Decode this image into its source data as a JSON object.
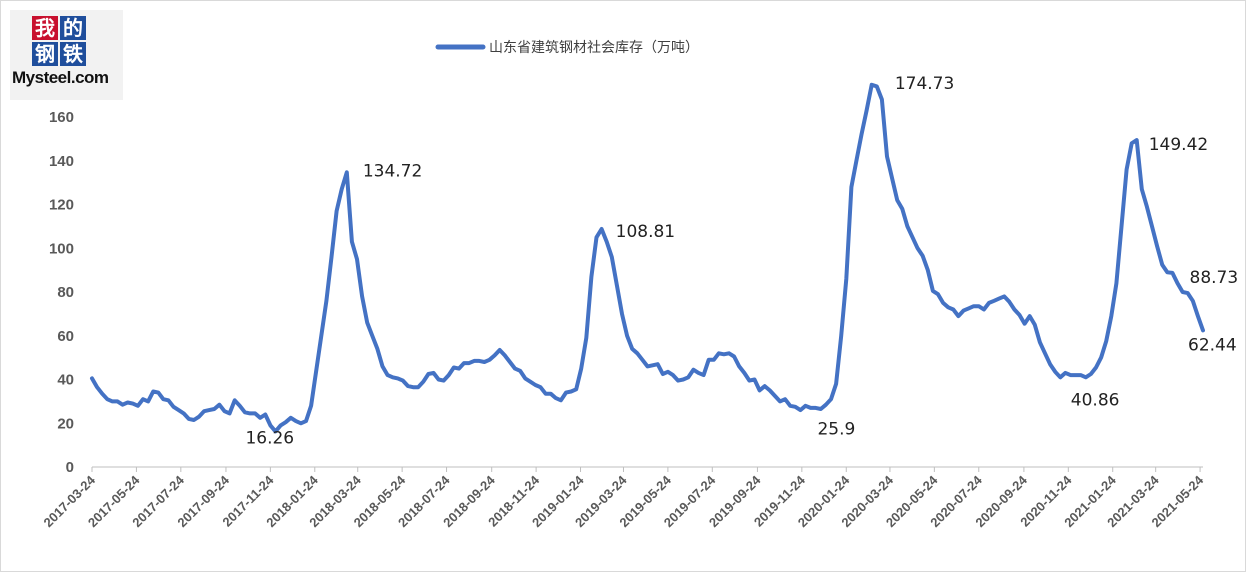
{
  "logo": {
    "chars": [
      "我",
      "的",
      "钢",
      "铁"
    ],
    "wordmark": "Mysteel.com"
  },
  "colors": {
    "series": "#4472c4",
    "axis": "#bfbfbf",
    "tick_text": "#595959"
  },
  "chart_data": {
    "type": "line",
    "title": "",
    "xlabel": "",
    "ylabel": "",
    "ylim": [
      0,
      160
    ],
    "yticks": [
      0,
      20,
      40,
      60,
      80,
      100,
      120,
      140,
      160
    ],
    "grid": false,
    "legend_position": "top-center",
    "x_tick_labels": [
      "2017-03-24",
      "2017-05-24",
      "2017-07-24",
      "2017-09-24",
      "2017-11-24",
      "2018-01-24",
      "2018-03-24",
      "2018-05-24",
      "2018-07-24",
      "2018-09-24",
      "2018-11-24",
      "2019-01-24",
      "2019-03-24",
      "2019-05-24",
      "2019-07-24",
      "2019-09-24",
      "2019-11-24",
      "2020-01-24",
      "2020-03-24",
      "2020-05-24",
      "2020-07-24",
      "2020-09-24",
      "2020-11-24",
      "2021-01-24",
      "2021-03-24",
      "2021-05-24"
    ],
    "series": [
      {
        "name": "山东省建筑钢材社会库存（万吨）",
        "x": [
          "2017-03-24",
          "2017-03-31",
          "2017-04-07",
          "2017-04-14",
          "2017-04-21",
          "2017-04-28",
          "2017-05-05",
          "2017-05-12",
          "2017-05-19",
          "2017-05-26",
          "2017-06-02",
          "2017-06-09",
          "2017-06-16",
          "2017-06-23",
          "2017-06-30",
          "2017-07-07",
          "2017-07-14",
          "2017-07-21",
          "2017-07-28",
          "2017-08-04",
          "2017-08-11",
          "2017-08-18",
          "2017-08-25",
          "2017-09-01",
          "2017-09-08",
          "2017-09-15",
          "2017-09-22",
          "2017-09-29",
          "2017-10-06",
          "2017-10-13",
          "2017-10-20",
          "2017-10-27",
          "2017-11-03",
          "2017-11-10",
          "2017-11-17",
          "2017-11-24",
          "2017-12-01",
          "2017-12-08",
          "2017-12-15",
          "2017-12-22",
          "2017-12-29",
          "2018-01-05",
          "2018-01-12",
          "2018-01-19",
          "2018-01-26",
          "2018-02-02",
          "2018-02-09",
          "2018-02-16",
          "2018-02-23",
          "2018-03-02",
          "2018-03-09",
          "2018-03-16",
          "2018-03-23",
          "2018-03-30",
          "2018-04-06",
          "2018-04-13",
          "2018-04-20",
          "2018-04-27",
          "2018-05-04",
          "2018-05-11",
          "2018-05-18",
          "2018-05-25",
          "2018-06-01",
          "2018-06-08",
          "2018-06-15",
          "2018-06-22",
          "2018-06-29",
          "2018-07-06",
          "2018-07-13",
          "2018-07-20",
          "2018-07-27",
          "2018-08-03",
          "2018-08-10",
          "2018-08-17",
          "2018-08-24",
          "2018-08-31",
          "2018-09-07",
          "2018-09-14",
          "2018-09-21",
          "2018-09-28",
          "2018-10-05",
          "2018-10-12",
          "2018-10-19",
          "2018-10-26",
          "2018-11-02",
          "2018-11-09",
          "2018-11-16",
          "2018-11-23",
          "2018-11-30",
          "2018-12-07",
          "2018-12-14",
          "2018-12-21",
          "2018-12-28",
          "2019-01-04",
          "2019-01-11",
          "2019-01-18",
          "2019-01-25",
          "2019-02-01",
          "2019-02-08",
          "2019-02-15",
          "2019-02-22",
          "2019-03-01",
          "2019-03-08",
          "2019-03-15",
          "2019-03-22",
          "2019-03-29",
          "2019-04-05",
          "2019-04-12",
          "2019-04-19",
          "2019-04-26",
          "2019-05-03",
          "2019-05-10",
          "2019-05-17",
          "2019-05-24",
          "2019-05-31",
          "2019-06-07",
          "2019-06-14",
          "2019-06-21",
          "2019-06-28",
          "2019-07-05",
          "2019-07-12",
          "2019-07-19",
          "2019-07-26",
          "2019-08-02",
          "2019-08-09",
          "2019-08-16",
          "2019-08-23",
          "2019-08-30",
          "2019-09-06",
          "2019-09-13",
          "2019-09-20",
          "2019-09-27",
          "2019-10-04",
          "2019-10-11",
          "2019-10-18",
          "2019-10-25",
          "2019-11-01",
          "2019-11-08",
          "2019-11-15",
          "2019-11-22",
          "2019-11-29",
          "2019-12-06",
          "2019-12-13",
          "2019-12-20",
          "2019-12-27",
          "2020-01-03",
          "2020-01-10",
          "2020-01-17",
          "2020-01-24",
          "2020-01-31",
          "2020-02-07",
          "2020-02-14",
          "2020-02-21",
          "2020-02-28",
          "2020-03-06",
          "2020-03-13",
          "2020-03-20",
          "2020-03-27",
          "2020-04-03",
          "2020-04-10",
          "2020-04-17",
          "2020-04-24",
          "2020-05-01",
          "2020-05-08",
          "2020-05-15",
          "2020-05-22",
          "2020-05-29",
          "2020-06-05",
          "2020-06-12",
          "2020-06-19",
          "2020-06-26",
          "2020-07-03",
          "2020-07-10",
          "2020-07-17",
          "2020-07-24",
          "2020-07-31",
          "2020-08-07",
          "2020-08-14",
          "2020-08-21",
          "2020-08-28",
          "2020-09-04",
          "2020-09-11",
          "2020-09-18",
          "2020-09-25",
          "2020-10-02",
          "2020-10-09",
          "2020-10-16",
          "2020-10-23",
          "2020-10-30",
          "2020-11-06",
          "2020-11-13",
          "2020-11-20",
          "2020-11-27",
          "2020-12-04",
          "2020-12-11",
          "2020-12-18",
          "2020-12-25",
          "2021-01-01",
          "2021-01-08",
          "2021-01-15",
          "2021-01-22",
          "2021-01-29",
          "2021-02-05",
          "2021-02-12",
          "2021-02-19",
          "2021-02-26",
          "2021-03-05",
          "2021-03-12",
          "2021-03-19",
          "2021-03-26",
          "2021-04-02",
          "2021-04-09",
          "2021-04-16",
          "2021-04-23",
          "2021-04-30",
          "2021-05-07",
          "2021-05-14",
          "2021-05-21",
          "2021-05-28"
        ],
        "values": [
          40.5,
          36.5,
          33.5,
          31,
          30,
          30,
          28.5,
          29.5,
          29,
          28,
          31,
          30,
          34.5,
          34,
          31,
          30.5,
          27.5,
          26,
          24.5,
          22,
          21.5,
          23,
          25.5,
          26,
          26.5,
          28.5,
          25.5,
          24.5,
          30.5,
          28,
          25,
          24.5,
          24.5,
          22.5,
          24,
          19,
          16.26,
          19,
          20.5,
          22.5,
          21,
          20,
          21,
          28,
          44,
          60,
          76,
          96,
          117,
          127,
          134.72,
          103,
          95,
          78,
          66,
          60,
          54,
          46,
          42,
          41,
          40.5,
          39.5,
          37,
          36.5,
          36.5,
          39,
          42.5,
          43,
          40,
          39.5,
          42,
          45.5,
          45,
          47.5,
          47.5,
          48.5,
          48.5,
          48,
          49,
          51,
          53.5,
          51,
          48,
          45,
          44,
          40.5,
          39,
          37.5,
          36.5,
          33.5,
          33.5,
          31.5,
          30.5,
          34,
          34.5,
          35.5,
          45,
          59,
          87,
          105,
          108.81,
          103,
          96,
          83,
          70,
          60,
          54,
          52,
          49,
          46,
          46.5,
          47,
          42.5,
          43.5,
          42,
          39.5,
          40,
          41,
          44.5,
          43,
          42,
          49,
          49,
          52,
          51.5,
          52,
          50.5,
          46,
          43,
          39.5,
          40,
          35,
          37,
          35,
          32.5,
          30,
          31,
          28,
          27.5,
          26,
          28,
          27,
          27,
          26.5,
          28.5,
          31,
          38,
          60,
          86,
          128,
          140,
          152,
          163,
          174.73,
          174,
          168,
          142,
          132,
          122,
          118,
          110,
          105,
          100,
          96.5,
          90,
          80.5,
          79,
          75,
          73,
          72,
          69,
          71.5,
          72.5,
          73.5,
          73.5,
          72,
          75,
          76,
          77,
          78,
          75.5,
          72,
          69.5,
          65.5,
          69,
          65,
          57,
          52,
          47,
          43.5,
          41,
          43,
          42,
          42,
          42,
          41,
          42.5,
          45.5,
          50,
          57.5,
          69,
          84,
          110,
          136,
          148,
          149.42,
          127,
          119,
          110,
          101,
          92.5,
          89,
          88.73,
          84,
          80,
          79.5,
          76,
          69,
          62.44
        ]
      }
    ],
    "annotations": [
      {
        "x": "2017-12-01",
        "value": 16.26,
        "text": "16.26"
      },
      {
        "x": "2018-03-09",
        "value": 134.72,
        "text": "134.72"
      },
      {
        "x": "2019-02-22",
        "value": 108.81,
        "text": "108.81"
      },
      {
        "x": "2019-11-29",
        "value": 25.9,
        "text": "25.9"
      },
      {
        "x": "2020-03-06",
        "value": 174.73,
        "text": "174.73"
      },
      {
        "x": "2020-12-18",
        "value": 40.86,
        "text": "40.86"
      },
      {
        "x": "2021-02-26",
        "value": 149.42,
        "text": "149.42"
      },
      {
        "x": "2021-04-23",
        "value": 88.73,
        "text": "88.73"
      },
      {
        "x": "2021-05-28",
        "value": 62.44,
        "text": "62.44"
      }
    ]
  }
}
